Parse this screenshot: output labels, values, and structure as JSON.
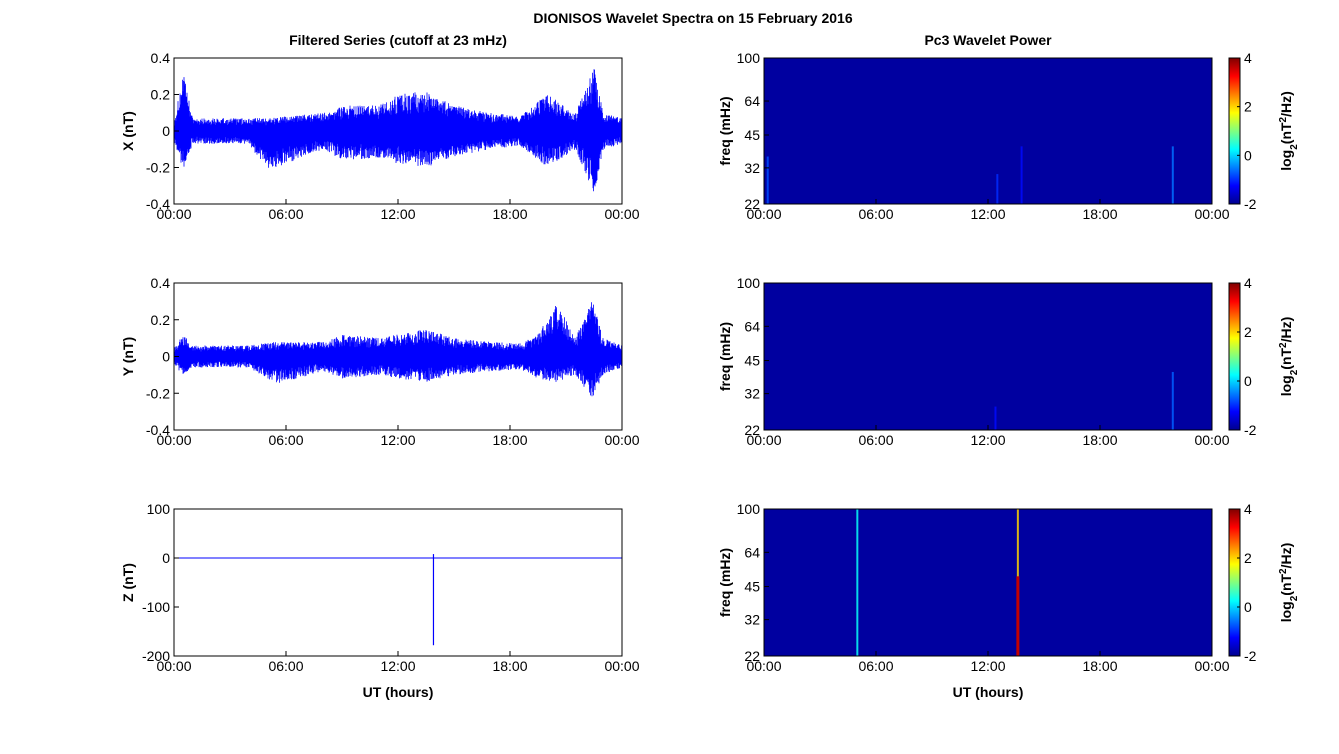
{
  "figure": {
    "title": "DIONISOS Wavelet Spectra on 15 February 2016"
  },
  "colors": {
    "trace": "#0000ff",
    "spectrogram_background": "#0000a0",
    "colormap": [
      "#00008f",
      "#0000ff",
      "#0080ff",
      "#00ffff",
      "#80ff80",
      "#ffff00",
      "#ff8000",
      "#ff0000",
      "#800000"
    ]
  },
  "chart_data": [
    {
      "type": "line",
      "panel": "X",
      "title": "Filtered Series (cutoff at 23 mHz)",
      "xlabel": "",
      "ylabel": "X (nT)",
      "xlim": [
        "00:00",
        "24:00"
      ],
      "x_ticks": [
        "00:00",
        "06:00",
        "12:00",
        "18:00",
        "00:00"
      ],
      "ylim": [
        -0.4,
        0.4
      ],
      "y_ticks": [
        "0.4",
        "0.2",
        "0",
        "-0.2",
        "-0.4"
      ],
      "envelope": {
        "x_hours": [
          0.0,
          0.5,
          1.0,
          4.0,
          5.0,
          8.0,
          9.0,
          11.0,
          12.0,
          13.5,
          15.0,
          17.0,
          18.5,
          20.0,
          21.5,
          22.5,
          23.0,
          24.0
        ],
        "upper": [
          0.05,
          0.32,
          0.07,
          0.07,
          0.07,
          0.1,
          0.14,
          0.14,
          0.2,
          0.22,
          0.14,
          0.1,
          0.08,
          0.2,
          0.1,
          0.35,
          0.1,
          0.07
        ],
        "lower": [
          -0.05,
          -0.22,
          -0.07,
          -0.07,
          -0.22,
          -0.1,
          -0.16,
          -0.15,
          -0.18,
          -0.2,
          -0.14,
          -0.1,
          -0.08,
          -0.2,
          -0.1,
          -0.35,
          -0.1,
          -0.07
        ]
      },
      "grid": false
    },
    {
      "type": "line",
      "panel": "Y",
      "title": "",
      "xlabel": "",
      "ylabel": "Y (nT)",
      "xlim": [
        "00:00",
        "24:00"
      ],
      "x_ticks": [
        "00:00",
        "06:00",
        "12:00",
        "18:00",
        "00:00"
      ],
      "ylim": [
        -0.4,
        0.4
      ],
      "y_ticks": [
        "0.4",
        "0.2",
        "0",
        "-0.2",
        "-0.4"
      ],
      "envelope": {
        "x_hours": [
          0.0,
          0.5,
          1.0,
          4.0,
          5.5,
          8.0,
          9.0,
          11.0,
          12.0,
          13.5,
          15.0,
          17.0,
          18.5,
          19.5,
          20.5,
          21.5,
          22.4,
          23.0,
          24.0
        ],
        "upper": [
          0.05,
          0.12,
          0.06,
          0.06,
          0.08,
          0.08,
          0.12,
          0.1,
          0.12,
          0.15,
          0.1,
          0.08,
          0.07,
          0.12,
          0.3,
          0.1,
          0.31,
          0.1,
          0.06
        ],
        "lower": [
          -0.05,
          -0.1,
          -0.06,
          -0.06,
          -0.15,
          -0.08,
          -0.12,
          -0.1,
          -0.12,
          -0.14,
          -0.1,
          -0.08,
          -0.07,
          -0.12,
          -0.14,
          -0.1,
          -0.23,
          -0.1,
          -0.06
        ]
      },
      "grid": false
    },
    {
      "type": "line",
      "panel": "Z",
      "title": "",
      "xlabel": "UT (hours)",
      "ylabel": "Z (nT)",
      "xlim": [
        "00:00",
        "24:00"
      ],
      "x_ticks": [
        "00:00",
        "06:00",
        "12:00",
        "18:00",
        "00:00"
      ],
      "ylim": [
        -200,
        100
      ],
      "y_ticks": [
        "100",
        "0",
        "-100",
        "-200"
      ],
      "baseline": 0,
      "spike": {
        "x_hours": 13.9,
        "min": -178,
        "max": 8
      },
      "grid": false
    },
    {
      "type": "heatmap",
      "panel": "X",
      "title": "Pc3 Wavelet Power",
      "xlabel": "",
      "ylabel": "freq (mHz)",
      "xlim": [
        "00:00",
        "24:00"
      ],
      "x_ticks": [
        "00:00",
        "06:00",
        "12:00",
        "18:00",
        "00:00"
      ],
      "y_scale": "log",
      "ylim_mHz": [
        22,
        100
      ],
      "y_ticks": [
        "100",
        "64",
        "45",
        "32",
        "22"
      ],
      "colorbar": {
        "label": "log2(nT²/Hz)",
        "range": [
          -2,
          4
        ],
        "ticks": [
          "4",
          "2",
          "0",
          "-2"
        ]
      },
      "streaks": [
        {
          "x_hours": 0.2,
          "f_top_mHz": 36,
          "level": -0.8
        },
        {
          "x_hours": 12.5,
          "f_top_mHz": 30,
          "level": -1.0
        },
        {
          "x_hours": 13.8,
          "f_top_mHz": 40,
          "level": -1.2
        },
        {
          "x_hours": 21.9,
          "f_top_mHz": 40,
          "level": -0.6
        }
      ]
    },
    {
      "type": "heatmap",
      "panel": "Y",
      "title": "",
      "xlabel": "",
      "ylabel": "freq (mHz)",
      "xlim": [
        "00:00",
        "24:00"
      ],
      "x_ticks": [
        "00:00",
        "06:00",
        "12:00",
        "18:00",
        "00:00"
      ],
      "y_scale": "log",
      "ylim_mHz": [
        22,
        100
      ],
      "y_ticks": [
        "100",
        "64",
        "45",
        "32",
        "22"
      ],
      "colorbar": {
        "label": "log2(nT²/Hz)",
        "range": [
          -2,
          4
        ],
        "ticks": [
          "4",
          "2",
          "0",
          "-2"
        ]
      },
      "streaks": [
        {
          "x_hours": 12.4,
          "f_top_mHz": 28,
          "level": -1.2
        },
        {
          "x_hours": 21.9,
          "f_top_mHz": 40,
          "level": -0.7
        }
      ]
    },
    {
      "type": "heatmap",
      "panel": "Z",
      "title": "",
      "xlabel": "UT (hours)",
      "ylabel": "freq (mHz)",
      "xlim": [
        "00:00",
        "24:00"
      ],
      "x_ticks": [
        "00:00",
        "06:00",
        "12:00",
        "18:00",
        "00:00"
      ],
      "y_scale": "log",
      "ylim_mHz": [
        22,
        100
      ],
      "y_ticks": [
        "100",
        "64",
        "45",
        "32",
        "22"
      ],
      "colorbar": {
        "label": "log2(nT²/Hz)",
        "range": [
          -2,
          4
        ],
        "ticks": [
          "4",
          "2",
          "0",
          "-2"
        ]
      },
      "streaks": [
        {
          "x_hours": 5.0,
          "f_top_mHz": 100,
          "level": 0.3
        },
        {
          "x_hours": 13.6,
          "f_top_mHz": 100,
          "level": 2.0,
          "peak": 3.6,
          "peak_below_mHz": 50
        }
      ]
    }
  ]
}
